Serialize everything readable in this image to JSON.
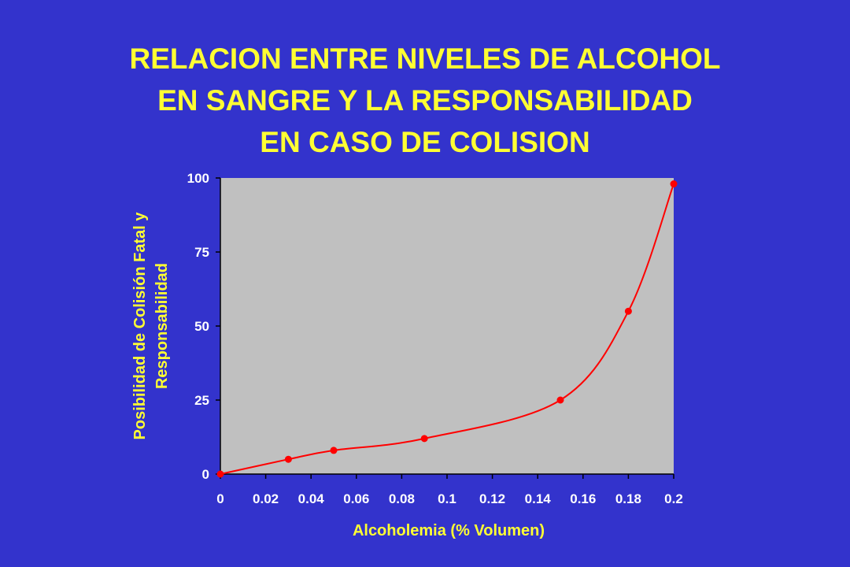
{
  "slide": {
    "title_lines": [
      "RELACION ENTRE NIVELES DE ALCOHOL",
      "EN SANGRE Y LA RESPONSABILIDAD",
      "EN CASO DE COLISION"
    ]
  },
  "colors": {
    "background": "#3333cc",
    "title": "#ffff33",
    "plot_area": "#c0c0c0",
    "series_line": "#ff0000",
    "tick_labels": "#ffffff",
    "axis_labels": "#ffff33"
  },
  "chart_data": {
    "type": "line",
    "smoothed": true,
    "markers": true,
    "grid": false,
    "legend": "none",
    "xlabel": "Alcoholemia (% Volumen)",
    "ylabel_lines": [
      "Posibilidad de Colisión Fatal y",
      "Responsabilidad"
    ],
    "xlim": [
      0,
      0.2
    ],
    "ylim": [
      0,
      100
    ],
    "xticks": [
      "0",
      "0.02",
      "0.04",
      "0.06",
      "0.08",
      "0.1",
      "0.12",
      "0.14",
      "0.16",
      "0.18",
      "0.2"
    ],
    "xtick_values": [
      0,
      0.02,
      0.04,
      0.06,
      0.08,
      0.1,
      0.12,
      0.14,
      0.16,
      0.18,
      0.2
    ],
    "yticks": [
      "0",
      "25",
      "50",
      "75",
      "100"
    ],
    "ytick_values": [
      0,
      25,
      50,
      75,
      100
    ],
    "series": [
      {
        "x": [
          0,
          0.03,
          0.05,
          0.09,
          0.15,
          0.18,
          0.2
        ],
        "y": [
          0,
          5,
          8,
          12,
          25,
          55,
          98
        ]
      }
    ]
  }
}
